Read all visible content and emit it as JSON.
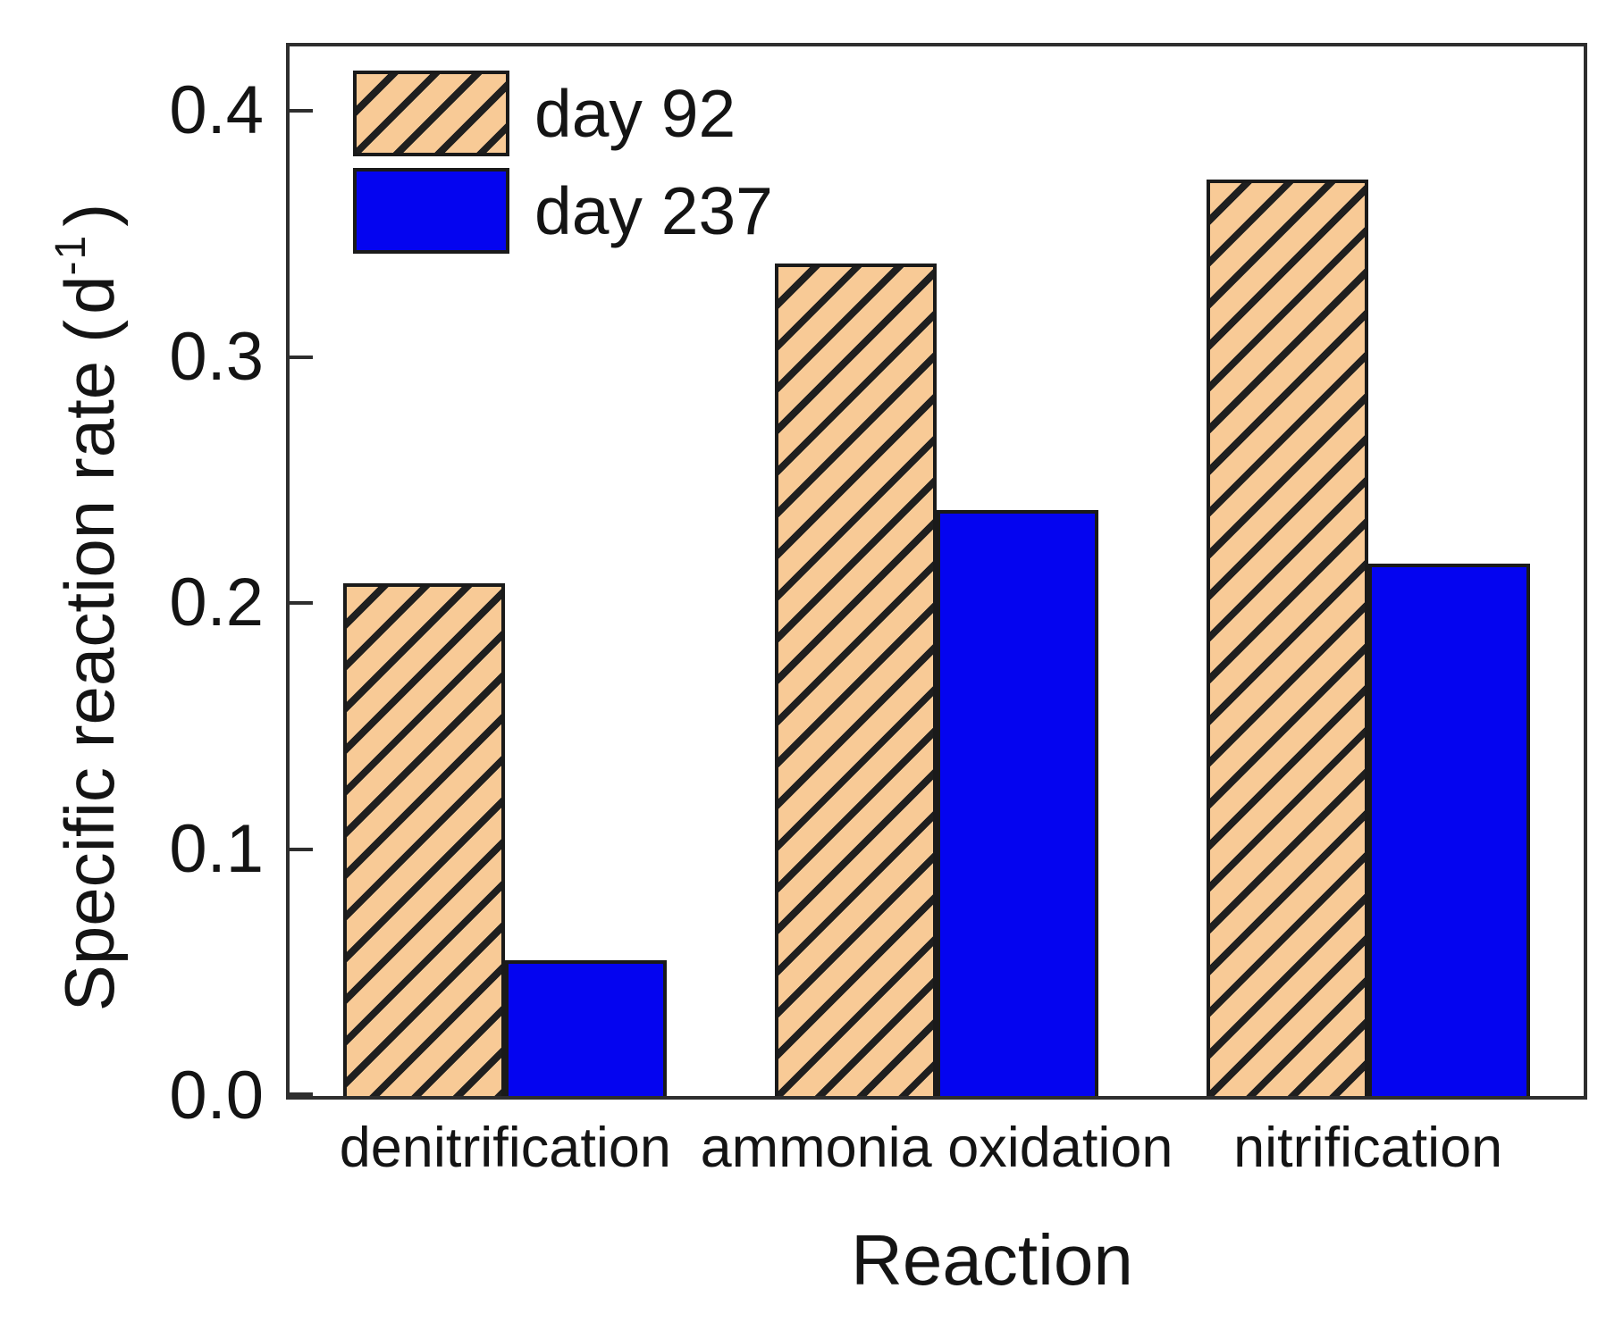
{
  "figure": {
    "y_axis_title": "Specific reaction rate",
    "y_unit_open": "(",
    "y_unit_letter": "d",
    "y_unit_sup": "-1",
    "y_unit_close": ")",
    "x_axis_title": "Reaction"
  },
  "colors": {
    "day92_fill": "#F8CA96",
    "day92_hatch": "#1f1f1f",
    "day237_fill": "#0404F0",
    "bar_border": "#1a1a1a",
    "frame": "#2e2e2e",
    "text": "#141414"
  },
  "chart_data": {
    "type": "bar",
    "title": "",
    "xlabel": "Reaction",
    "ylabel": "Specific reaction rate (d-1)",
    "categories": [
      "denitrification",
      "ammonia oxidation",
      "nitrification"
    ],
    "series": [
      {
        "name": "day 92",
        "style": "hatch",
        "values": [
          0.208,
          0.338,
          0.372
        ]
      },
      {
        "name": "day 237",
        "style": "solid",
        "values": [
          0.055,
          0.238,
          0.216
        ]
      }
    ],
    "yticks": [
      0.0,
      0.1,
      0.2,
      0.3,
      0.4
    ],
    "ytick_labels": [
      "0.0",
      "0.1",
      "0.2",
      "0.3",
      "0.4"
    ],
    "ylim": [
      0,
      0.426
    ],
    "grid": false,
    "legend_position": "top-left-inside"
  }
}
